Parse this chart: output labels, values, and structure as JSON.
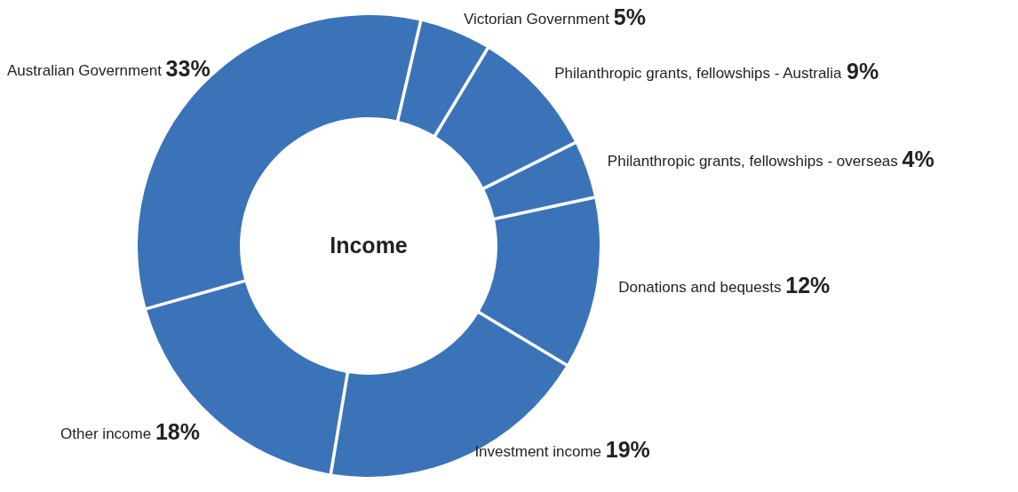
{
  "chart_data": {
    "type": "donut",
    "title": "Income",
    "categories": [
      "Australian Government",
      "Victorian Government",
      "Philanthropic grants, fellowships - Australia",
      "Philanthropic grants, fellowships - overseas",
      "Donations and bequests",
      "Investment income",
      "Other income"
    ],
    "values": [
      33,
      5,
      9,
      4,
      12,
      19,
      18
    ],
    "colors": [
      "#3b73b9",
      "#3b73b9",
      "#3b73b9",
      "#3b73b9",
      "#3b73b9",
      "#3b73b9",
      "#3b73b9"
    ],
    "value_labels": [
      "33%",
      "5%",
      "9%",
      "4%",
      "12%",
      "19%",
      "18%"
    ]
  }
}
